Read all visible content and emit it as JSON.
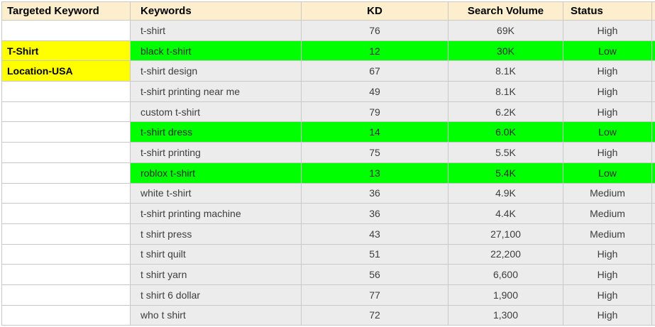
{
  "app": "spreadsheet-keyword-research",
  "colors": {
    "header_bg": "#fdefcd",
    "row_bg": "#ececec",
    "first_col_bg": "#ffffff",
    "highlight_green": "#00ff00",
    "highlight_yellow": "#ffff00",
    "gridline": "#c9c9c9",
    "text": "#3d3d3d",
    "header_text": "#000000"
  },
  "table": {
    "columns": [
      {
        "label": "Targeted Keyword",
        "align": "left"
      },
      {
        "label": "Keywords",
        "align": "left"
      },
      {
        "label": "KD",
        "align": "center"
      },
      {
        "label": "Search Volume",
        "align": "center"
      },
      {
        "label": "Status",
        "align": "left-header-center-values"
      }
    ],
    "rows": [
      {
        "targeted": "",
        "targeted_highlight": "none",
        "keyword": "t-shirt",
        "kd": "76",
        "volume": "69K",
        "status": "High",
        "highlight": "none"
      },
      {
        "targeted": "T-Shirt",
        "targeted_highlight": "yellow",
        "keyword": "black t-shirt",
        "kd": "12",
        "volume": "30K",
        "status": "Low",
        "highlight": "green"
      },
      {
        "targeted": "Location-USA",
        "targeted_highlight": "yellow",
        "keyword": "t-shirt design",
        "kd": "67",
        "volume": "8.1K",
        "status": "High",
        "highlight": "none"
      },
      {
        "targeted": "",
        "targeted_highlight": "none",
        "keyword": "t-shirt printing near me",
        "kd": "49",
        "volume": "8.1K",
        "status": "High",
        "highlight": "none"
      },
      {
        "targeted": "",
        "targeted_highlight": "none",
        "keyword": "custom t-shirt",
        "kd": "79",
        "volume": "6.2K",
        "status": "High",
        "highlight": "none"
      },
      {
        "targeted": "",
        "targeted_highlight": "none",
        "keyword": "t-shirt dress",
        "kd": "14",
        "volume": "6.0K",
        "status": "Low",
        "highlight": "green"
      },
      {
        "targeted": "",
        "targeted_highlight": "none",
        "keyword": "t-shirt printing",
        "kd": "75",
        "volume": "5.5K",
        "status": "High",
        "highlight": "none"
      },
      {
        "targeted": "",
        "targeted_highlight": "none",
        "keyword": "roblox t-shirt",
        "kd": "13",
        "volume": "5.4K",
        "status": "Low",
        "highlight": "green"
      },
      {
        "targeted": "",
        "targeted_highlight": "none",
        "keyword": "white t-shirt",
        "kd": "36",
        "volume": "4.9K",
        "status": "Medium",
        "highlight": "none"
      },
      {
        "targeted": "",
        "targeted_highlight": "none",
        "keyword": "t-shirt printing machine",
        "kd": "36",
        "volume": "4.4K",
        "status": "Medium",
        "highlight": "none"
      },
      {
        "targeted": "",
        "targeted_highlight": "none",
        "keyword": "t shirt press",
        "kd": "43",
        "volume": "27,100",
        "status": "Medium",
        "highlight": "none"
      },
      {
        "targeted": "",
        "targeted_highlight": "none",
        "keyword": "t shirt quilt",
        "kd": "51",
        "volume": "22,200",
        "status": "High",
        "highlight": "none"
      },
      {
        "targeted": "",
        "targeted_highlight": "none",
        "keyword": "t shirt yarn",
        "kd": "56",
        "volume": "6,600",
        "status": "High",
        "highlight": "none"
      },
      {
        "targeted": "",
        "targeted_highlight": "none",
        "keyword": "t shirt 6 dollar",
        "kd": "77",
        "volume": "1,900",
        "status": "High",
        "highlight": "none"
      },
      {
        "targeted": "",
        "targeted_highlight": "none",
        "keyword": "who t shirt",
        "kd": "72",
        "volume": "1,300",
        "status": "High",
        "highlight": "none"
      }
    ]
  }
}
